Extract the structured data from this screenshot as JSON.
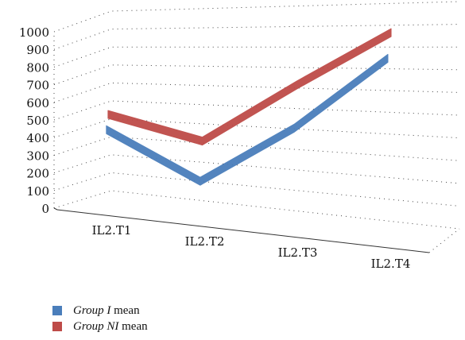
{
  "chart_data": {
    "type": "line",
    "title": "",
    "xlabel": "",
    "ylabel": "",
    "categories": [
      "IL2.T1",
      "IL2.T2",
      "IL2.T3",
      "IL2.T4"
    ],
    "ylim": [
      0,
      1000
    ],
    "yticks": [
      "0",
      "100",
      "200",
      "300",
      "400",
      "500",
      "600",
      "700",
      "800",
      "900",
      "1000"
    ],
    "grid": true,
    "series": [
      {
        "name_italic": "Group I",
        "name_suffix": " mean",
        "color": "#4a7ebb",
        "values": [
          420,
          170,
          480,
          860
        ]
      },
      {
        "name_italic": "Group NI",
        "name_suffix": " mean",
        "color": "#be4b48",
        "values": [
          490,
          360,
          690,
          990
        ]
      }
    ],
    "legend": "bottom-left"
  }
}
